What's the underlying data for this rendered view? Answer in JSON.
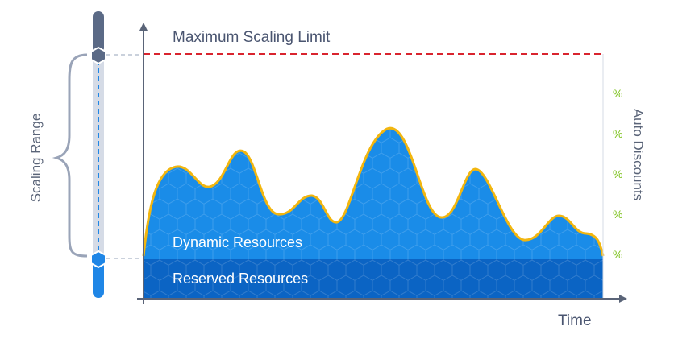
{
  "labels": {
    "max_limit": "Maximum Scaling Limit",
    "scaling_range": "Scaling Range",
    "auto_discounts": "Auto Discounts",
    "dynamic": "Dynamic Resources",
    "reserved": "Reserved Resources",
    "time": "Time",
    "percent": "%"
  },
  "colors": {
    "axis": "#5a6478",
    "limit_line": "#d9242e",
    "wave_fill": "#1a8ce8",
    "wave_stroke": "#f2b60f",
    "reserved_fill": "#0b64c4",
    "slider_track": "#d5dbe6",
    "slider_handle": "#5b6a86",
    "slider_active": "#1f86e6",
    "percent_text": "#7dc21e",
    "label_text": "#4a5570"
  },
  "percent_ticks": 5
}
